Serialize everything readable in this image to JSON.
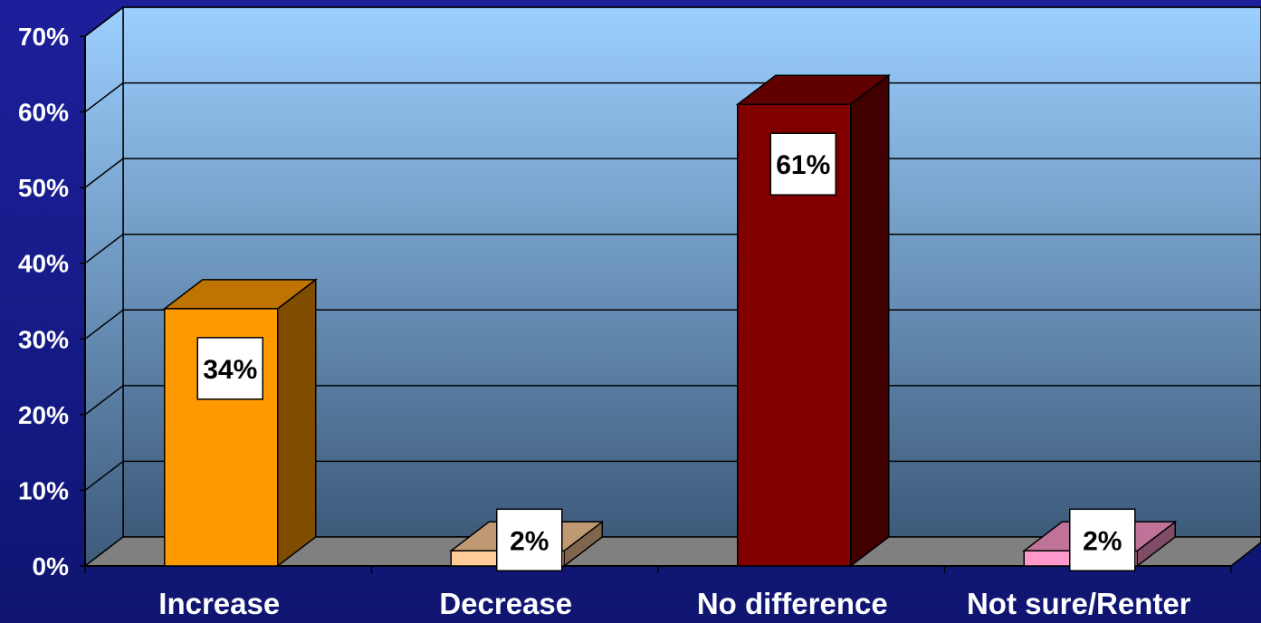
{
  "chart_data": {
    "type": "bar",
    "categories": [
      "Increase",
      "Decrease",
      "No difference",
      "Not sure/Renter"
    ],
    "values": [
      34,
      2,
      61,
      2
    ],
    "data_labels": [
      "34%",
      "2%",
      "61%",
      "2%"
    ],
    "y_ticks": [
      "0%",
      "10%",
      "20%",
      "30%",
      "40%",
      "50%",
      "60%",
      "70%"
    ],
    "ylim": [
      0,
      70
    ],
    "grid": true,
    "legend": "none",
    "colors": {
      "bars": [
        "#ff9900",
        "#ffcc99",
        "#800000",
        "#ff99cc"
      ],
      "plot_wall_top": "#9ccfff",
      "plot_wall_bottom": "#3d5a7a",
      "floor": "#808080",
      "label_box": "#ffffff"
    }
  }
}
